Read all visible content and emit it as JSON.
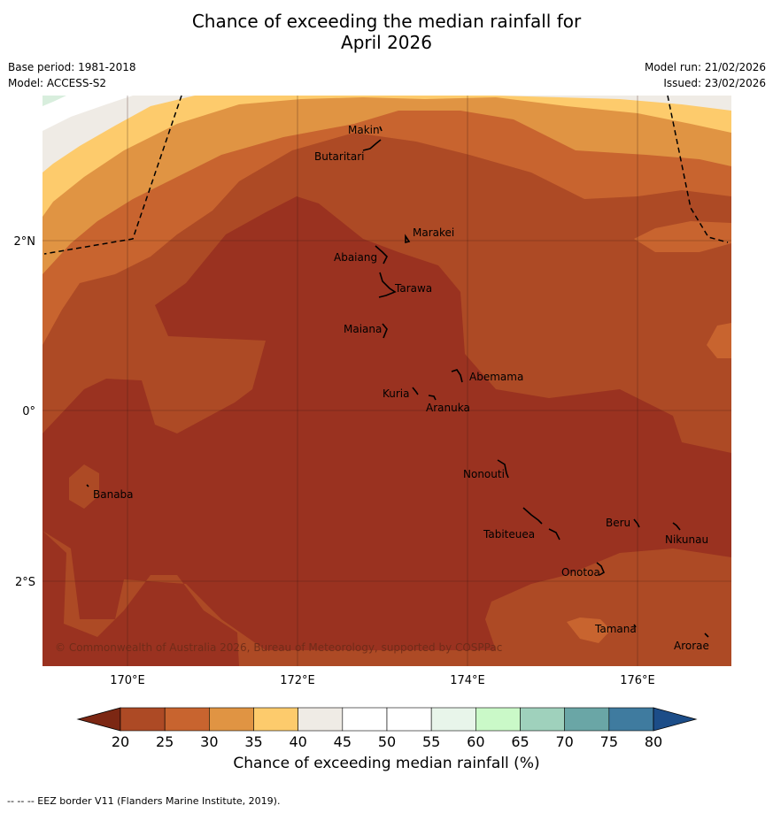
{
  "title_line1": "Chance of exceeding the median rainfall for",
  "title_line2": "April 2026",
  "base_period": "Base period: 1981-2018",
  "model": "Model: ACCESS-S2",
  "model_run": "Model run: 21/02/2026",
  "issued": "Issued: 23/02/2026",
  "copyright": "© Commonwealth of Australia 2026, Bureau of Meteorology, supported by COSPPac",
  "lat_labels": [
    "2°N",
    "0°",
    "2°S"
  ],
  "lon_labels": [
    "170°E",
    "172°E",
    "174°E",
    "176°E"
  ],
  "places": [
    "Makin",
    "Butaritari",
    "Marakei",
    "Abaiang",
    "Tarawa",
    "Maiana",
    "Abemama",
    "Kuria",
    "Aranuka",
    "Nonouti",
    "Banaba",
    "Beru",
    "Nikunau",
    "Tabiteuea",
    "Onotoa",
    "Tamana",
    "Arorae"
  ],
  "colorbar": {
    "ticks": [
      "20",
      "25",
      "30",
      "35",
      "40",
      "45",
      "50",
      "55",
      "60",
      "65",
      "70",
      "75",
      "80"
    ],
    "colors": [
      "#7c2713",
      "#ad4a25",
      "#c8642f",
      "#e09443",
      "#fdcb6c",
      "#efebe5",
      "#ffffff",
      "#ffffff",
      "#e8f5ea",
      "#caf9c8",
      "#9fd1bc",
      "#6aa6a6",
      "#3f7b9f",
      "#1c4d88"
    ],
    "label": "Chance of exceeding median rainfall (%)"
  },
  "footer": "--  --  -- EEZ border V11 (Flanders Marine Institute, 2019)."
}
